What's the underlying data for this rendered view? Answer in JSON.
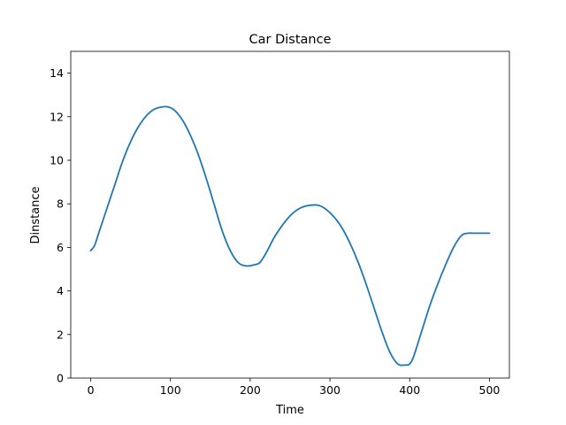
{
  "chart_data": {
    "type": "line",
    "title": "Car Distance",
    "xlabel": "Time",
    "ylabel": "Dinstance",
    "xlim": [
      -25,
      525
    ],
    "ylim": [
      0,
      15
    ],
    "xticks": [
      0,
      100,
      200,
      300,
      400,
      500
    ],
    "yticks": [
      0,
      2,
      4,
      6,
      8,
      10,
      12,
      14
    ],
    "grid": false,
    "legend": "none",
    "colors": {
      "line": "#1f77b4"
    },
    "series": [
      {
        "x": [
          0,
          5,
          10,
          20,
          30,
          40,
          50,
          60,
          70,
          80,
          90,
          97,
          105,
          115,
          125,
          135,
          145,
          155,
          165,
          175,
          185,
          195,
          205,
          212,
          220,
          230,
          240,
          250,
          260,
          270,
          280,
          287,
          295,
          305,
          315,
          325,
          335,
          345,
          355,
          365,
          375,
          385,
          395,
          400,
          405,
          415,
          425,
          435,
          445,
          455,
          465,
          473,
          480,
          490,
          500
        ],
        "y": [
          5.85,
          6.1,
          6.65,
          7.75,
          8.85,
          9.95,
          10.85,
          11.55,
          12.05,
          12.35,
          12.45,
          12.45,
          12.3,
          11.85,
          11.15,
          10.25,
          9.15,
          7.95,
          6.75,
          5.85,
          5.3,
          5.15,
          5.2,
          5.3,
          5.75,
          6.45,
          7.0,
          7.45,
          7.75,
          7.9,
          7.95,
          7.92,
          7.75,
          7.4,
          6.9,
          6.2,
          5.35,
          4.35,
          3.25,
          2.15,
          1.2,
          0.65,
          0.6,
          0.65,
          1.0,
          2.15,
          3.3,
          4.3,
          5.2,
          6.0,
          6.55,
          6.65,
          6.65,
          6.65,
          6.65
        ]
      }
    ]
  }
}
